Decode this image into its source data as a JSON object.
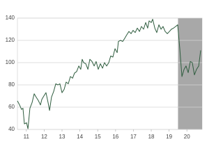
{
  "chart_data": {
    "type": "line",
    "x": [
      2011,
      2011.12,
      2011.23,
      2011.31,
      2011.39,
      2011.51,
      2011.59,
      2011.7,
      2011.82,
      2011.94,
      2012.05,
      2012.17,
      2012.29,
      2012.37,
      2012.48,
      2012.6,
      2012.72,
      2012.8,
      2012.91,
      2013.03,
      2013.15,
      2013.27,
      2013.38,
      2013.5,
      2013.62,
      2013.73,
      2013.85,
      2013.97,
      2014.09,
      2014.2,
      2014.32,
      2014.44,
      2014.55,
      2014.63,
      2014.71,
      2014.83,
      2014.95,
      2015.06,
      2015.18,
      2015.3,
      2015.41,
      2015.53,
      2015.65,
      2015.77,
      2015.88,
      2016,
      2016.12,
      2016.23,
      2016.35,
      2016.47,
      2016.59,
      2016.66,
      2016.78,
      2016.9,
      2017.02,
      2017.13,
      2017.25,
      2017.37,
      2017.48,
      2017.6,
      2017.72,
      2017.84,
      2017.95,
      2018.07,
      2018.19,
      2018.3,
      2018.38,
      2018.5,
      2018.58,
      2018.7,
      2018.81,
      2018.93,
      2019.05,
      2019.16,
      2019.28,
      2019.4,
      2019.52,
      2019.63,
      2019.75,
      2019.87,
      2019.98,
      2020.1,
      2020.22,
      2020.34,
      2020.45,
      2020.57,
      2020.69,
      2020.8,
      2020.92,
      2021.04,
      2021.16,
      2021.27
    ],
    "series": [
      {
        "color": "#2f5d3f",
        "values": [
          65.6,
          62,
          58,
          59,
          45,
          46,
          40.6,
          59,
          64,
          72,
          69,
          66,
          62,
          67,
          70,
          73,
          64,
          57,
          69,
          74,
          81,
          80,
          81,
          73,
          76,
          82.5,
          81,
          87.5,
          86,
          90.6,
          92,
          97,
          94,
          103,
          100,
          99,
          94,
          103,
          101,
          97,
          101,
          94,
          99,
          95,
          100,
          97,
          100,
          106,
          105,
          112.5,
          109,
          119,
          120,
          119,
          122,
          125,
          128,
          126,
          129,
          127,
          131,
          128,
          132.5,
          130,
          136,
          131,
          137.5,
          136,
          139,
          131,
          127,
          134,
          130,
          132.5,
          128,
          126,
          128,
          130,
          131,
          132.5,
          134,
          112.5,
          87.5,
          94,
          97,
          91,
          101,
          100,
          89,
          94,
          97,
          111
        ]
      }
    ],
    "xlim": [
      2011,
      2021.35
    ],
    "xticks": [
      {
        "value": 2011.5,
        "label": "11"
      },
      {
        "value": 2012.5,
        "label": "12"
      },
      {
        "value": 2013.5,
        "label": "13"
      },
      {
        "value": 2014.5,
        "label": "14"
      },
      {
        "value": 2015.5,
        "label": "15"
      },
      {
        "value": 2016.5,
        "label": "16"
      },
      {
        "value": 2017.5,
        "label": "17"
      },
      {
        "value": 2018.5,
        "label": "18"
      },
      {
        "value": 2019.5,
        "label": "19"
      },
      {
        "value": 2020.5,
        "label": "20"
      }
    ],
    "ylim": [
      40,
      140
    ],
    "yticks": [
      40,
      60,
      80,
      100,
      120,
      140
    ],
    "grid": true,
    "shaded_region": [
      2020,
      2021.35
    ],
    "shade_color": "#a8a8a8"
  }
}
